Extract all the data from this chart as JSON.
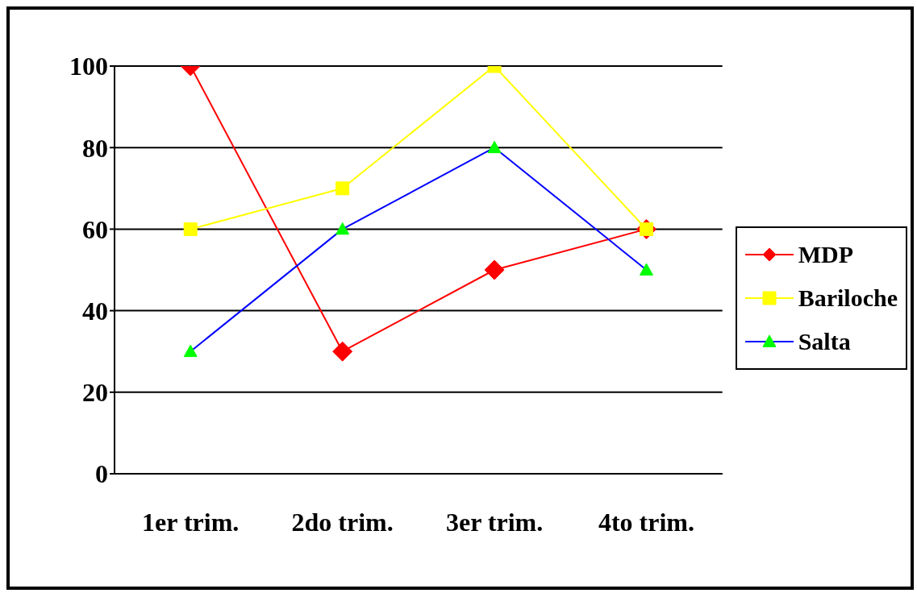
{
  "chart_data": {
    "type": "line",
    "categories": [
      "1er trim.",
      "2do trim.",
      "3er trim.",
      "4to trim."
    ],
    "series": [
      {
        "name": "MDP",
        "color": "#ff0000",
        "marker": "diamond",
        "values": [
          100,
          30,
          50,
          60
        ]
      },
      {
        "name": "Bariloche",
        "color": "#ffff00",
        "marker": "square",
        "values": [
          60,
          70,
          100,
          60
        ]
      },
      {
        "name": "Salta",
        "color": "#0000ff",
        "colors": [
          "#00ff00",
          "#00ff00",
          "#00ff00",
          "#00ff00"
        ],
        "marker": "triangle",
        "values": [
          30,
          60,
          80,
          50
        ]
      }
    ],
    "ylim": [
      0,
      100
    ],
    "yticks": [
      0,
      20,
      40,
      60,
      80,
      100
    ],
    "grid": "y",
    "legend": "right",
    "line_style": "solid"
  }
}
